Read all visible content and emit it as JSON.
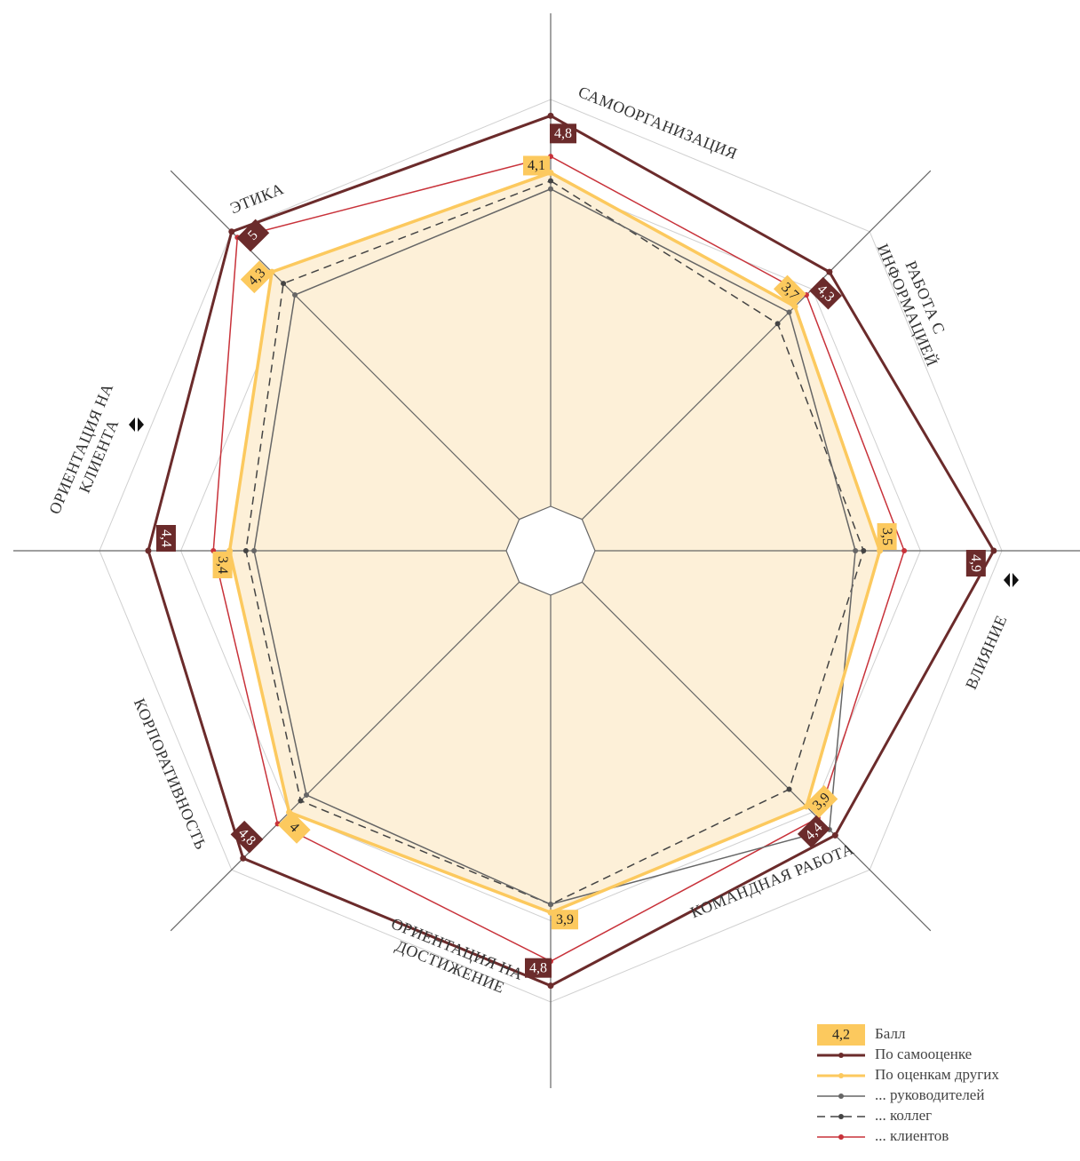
{
  "chart_data": {
    "type": "radar",
    "categories": [
      "САМООРГАНИЗАЦИЯ",
      "РАБОТА С\nИНФОРМАЦИЕЙ",
      "ВЛИЯНИЕ",
      "КОМАНДНАЯ РАБОТА",
      "ОРИЕНТАЦИЯ НА\nДОСТИЖЕНИЕ",
      "КОРПОРАТИВНОСТЬ",
      "ОРИЕНТАЦИЯ НА\nКЛИЕНТА",
      "ЭТИКА"
    ],
    "ylim": [
      0,
      5
    ],
    "yticks": [
      1,
      2,
      3,
      4,
      5
    ],
    "grid": true,
    "score_legend": {
      "sample": "4,2",
      "label": "Балл",
      "color": "#fcc95e"
    },
    "series": [
      {
        "name": "По самооценке",
        "color": "#6b2b2b",
        "values": [
          4.8,
          4.3,
          4.9,
          4.4,
          4.8,
          4.8,
          4.4,
          5
        ],
        "value_labels": [
          "4,8",
          "4,3",
          "4,9",
          "4,4",
          "4,8",
          "4,8",
          "4,4",
          "5"
        ]
      },
      {
        "name": "По оценкам других",
        "color": "#fcc95e",
        "fill": "#fdf0d8",
        "values": [
          4.1,
          3.7,
          3.5,
          3.9,
          3.9,
          4,
          3.4,
          4.3
        ],
        "value_labels": [
          "4,1",
          "3,7",
          "3,5",
          "3,9",
          "3,9",
          "4",
          "3,4",
          "4,3"
        ]
      },
      {
        "name": "... руководителей",
        "color": "#666666",
        "values": [
          3.9,
          3.6,
          3.2,
          4.3,
          3.8,
          3.7,
          3.1,
          3.9
        ]
      },
      {
        "name": "... коллег",
        "color": "#444444",
        "dash": true,
        "values": [
          4.0,
          3.4,
          3.3,
          3.6,
          3.8,
          3.8,
          3.2,
          4.1
        ]
      },
      {
        "name": "... клиентов",
        "color": "#c8323a",
        "values": [
          4.3,
          3.9,
          3.8,
          4.1,
          4.5,
          4.2,
          3.6,
          4.9
        ]
      }
    ]
  }
}
